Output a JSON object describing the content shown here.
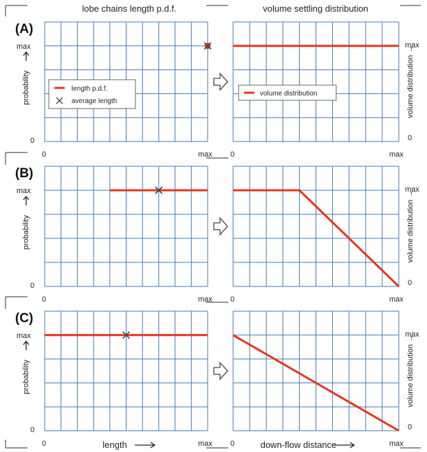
{
  "column_titles": {
    "left": "lobe chains length p.d.f.",
    "right": "volume settling distribution"
  },
  "axis_text": {
    "zero": "0",
    "max": "max",
    "left_ylabel": "probability",
    "right_ylabel": "volume distribution",
    "left_xlabel": "length",
    "right_xlabel": "down-flow distance"
  },
  "legends": {
    "left": [
      "length p.d.f.",
      "average length"
    ],
    "right": [
      "volume distribution"
    ]
  },
  "colors": {
    "grid": "#3f78b5",
    "series": "#e8331c",
    "marker": "#444444",
    "frame": "#555555"
  },
  "chart_data": [
    {
      "panel": "A",
      "type": "line",
      "side": "left",
      "xlim": [
        0,
        1
      ],
      "ylim": [
        0,
        1
      ],
      "series": [
        {
          "name": "length p.d.f.",
          "x": [
            1.0
          ],
          "y": [
            0.8
          ]
        }
      ],
      "markers": [
        {
          "name": "average length",
          "x": 1.0,
          "y": 0.8
        }
      ]
    },
    {
      "panel": "A",
      "type": "line",
      "side": "right",
      "xlim": [
        0,
        1
      ],
      "ylim": [
        0,
        1
      ],
      "series": [
        {
          "name": "volume distribution",
          "x": [
            0,
            1.0
          ],
          "y": [
            0.8,
            0.8
          ]
        }
      ]
    },
    {
      "panel": "B",
      "type": "line",
      "side": "left",
      "xlim": [
        0,
        1
      ],
      "ylim": [
        0,
        1
      ],
      "series": [
        {
          "name": "length p.d.f.",
          "x": [
            0.4,
            1.0
          ],
          "y": [
            0.8,
            0.8
          ]
        }
      ],
      "markers": [
        {
          "name": "average length",
          "x": 0.7,
          "y": 0.8
        }
      ]
    },
    {
      "panel": "B",
      "type": "line",
      "side": "right",
      "xlim": [
        0,
        1
      ],
      "ylim": [
        0,
        1
      ],
      "series": [
        {
          "name": "volume distribution",
          "x": [
            0,
            0.4,
            1.0
          ],
          "y": [
            0.8,
            0.8,
            0
          ]
        }
      ]
    },
    {
      "panel": "C",
      "type": "line",
      "side": "left",
      "xlim": [
        0,
        1
      ],
      "ylim": [
        0,
        1
      ],
      "series": [
        {
          "name": "length p.d.f.",
          "x": [
            0,
            1.0
          ],
          "y": [
            0.8,
            0.8
          ]
        }
      ],
      "markers": [
        {
          "name": "average length",
          "x": 0.5,
          "y": 0.8
        }
      ]
    },
    {
      "panel": "C",
      "type": "line",
      "side": "right",
      "xlim": [
        0,
        1
      ],
      "ylim": [
        0,
        1
      ],
      "series": [
        {
          "name": "volume distribution",
          "x": [
            0,
            1.0
          ],
          "y": [
            0.8,
            0
          ]
        }
      ]
    }
  ]
}
